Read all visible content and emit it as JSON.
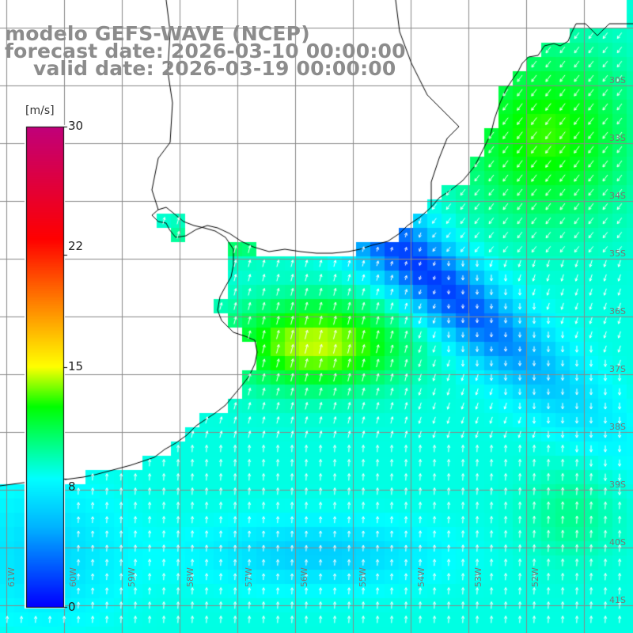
{
  "title": {
    "line1": "modelo GEFS-WAVE (NCEP)",
    "line2": "forecast date: 2026-03-10 00:00:00",
    "line3": "valid date: 2026-03-19 00:00:00"
  },
  "colorbar": {
    "unit": "[m/s]",
    "min": 0,
    "max": 30,
    "ticks": [
      "30",
      "22",
      "15",
      "8",
      "0"
    ],
    "tick_values": [
      30,
      22,
      15,
      8,
      0
    ],
    "colors": [
      "#0000ff",
      "#00b4ff",
      "#00ffff",
      "#00ff00",
      "#ffff00",
      "#ff8000",
      "#ff0000",
      "#c0007a"
    ]
  },
  "axes": {
    "lat_labels": [
      "30S",
      "33S",
      "34S",
      "35S",
      "36S",
      "37S",
      "38S",
      "39S",
      "40S",
      "41S"
    ],
    "lon_labels": [
      "61W",
      "60W",
      "59W",
      "58W",
      "57W",
      "56W",
      "55W",
      "54W",
      "53W",
      "52W"
    ]
  },
  "colors": {
    "land": "#ffffff",
    "grid": "#888888",
    "coast": "#000000",
    "title_text": "#8c8c8c",
    "arrow": "#ffffff"
  },
  "wind_field": {
    "variable": "wind speed",
    "units": "m/s",
    "pattern": "strong offshore northerly to north-easterly winds over the Rio de la Plata mouth (about 13-15 m/s), a band of weak winds (about 1-3 m/s) running south-east of the Uruguay coast, moderate 7-10 m/s winds elsewhere"
  }
}
